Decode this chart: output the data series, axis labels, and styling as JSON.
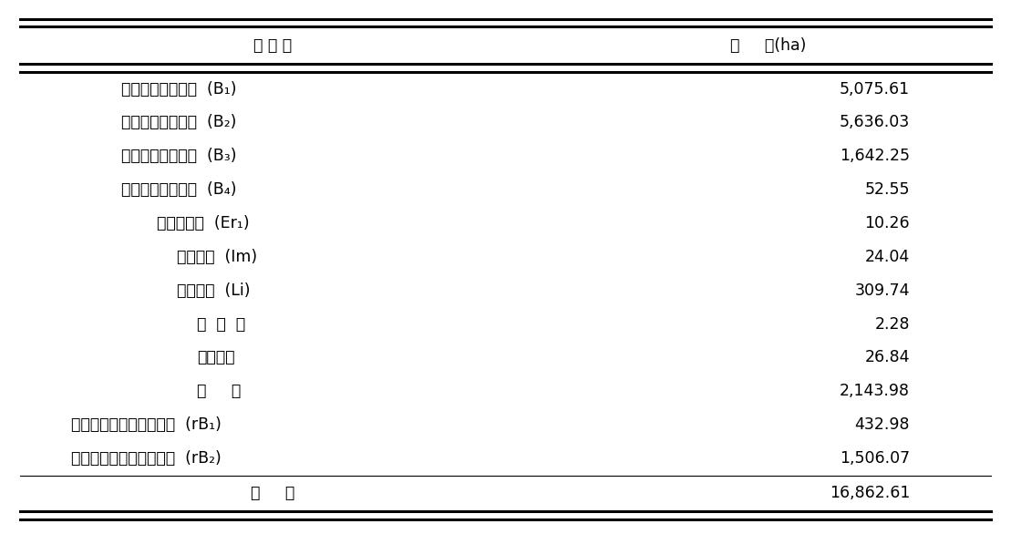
{
  "header_col1": "토 양 형",
  "header_col2": "면     적(ha)",
  "rows": [
    [
      "갈색건조산림토양  (B₁)",
      "5,075.61"
    ],
    [
      "갈색약건산림토양  (B₂)",
      "5,636.03"
    ],
    [
      "갈색적윤산림토양  (B₃)",
      "1,642.25"
    ],
    [
      "갈색약습산림토양  (B₄)",
      "52.55"
    ],
    [
      "약침식토양  (Er₁)",
      "10.26"
    ],
    [
      "미숙토양  (Im)",
      "24.04"
    ],
    [
      "암쇄토양  (Li)",
      "309.74"
    ],
    [
      "목  초  지",
      "2.28"
    ],
    [
      "군사지역",
      "26.84"
    ],
    [
      "제     지",
      "2,143.98"
    ],
    [
      "적색계갈색건조산림토양  (rB₁)",
      "432.98"
    ],
    [
      "적색계갈색약건산림토양  (rB₂)",
      "1,506.07"
    ]
  ],
  "footer_col1": "합     계",
  "footer_col2": "16,862.61",
  "row_indent": [
    0.12,
    0.12,
    0.12,
    0.12,
    0.155,
    0.175,
    0.175,
    0.195,
    0.195,
    0.195,
    0.07,
    0.07
  ],
  "bg_color": "#ffffff",
  "text_color": "#000000",
  "font_size": 12.5,
  "header_font_size": 12.5,
  "footer_font_size": 12.5
}
